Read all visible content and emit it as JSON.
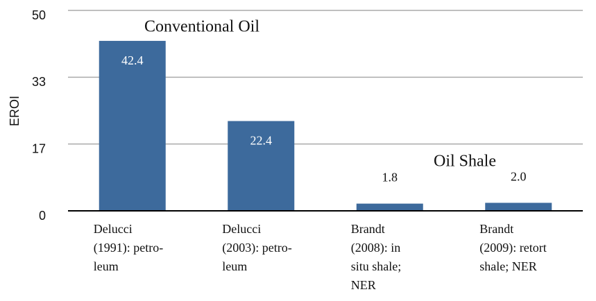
{
  "chart_data": {
    "type": "bar",
    "y_label": "EROI",
    "annotations": [
      "Conventional Oil",
      "Oil Shale"
    ],
    "categories": [
      [
        "Delucci",
        "(1991): petro-",
        "leum"
      ],
      [
        "Delucci",
        "(2003): petro-",
        "leum"
      ],
      [
        "Brandt",
        "(2008): in",
        "situ shale;",
        "NER"
      ],
      [
        "Brandt",
        "(2009): retort",
        "shale; NER"
      ]
    ],
    "values": [
      42.4,
      22.4,
      1.8,
      2.0
    ],
    "value_labels": [
      "42.4",
      "22.4",
      "1.8",
      "2.0"
    ],
    "color": "#3d6a9c",
    "ylim": [
      0,
      50
    ],
    "yticks": [
      0,
      {
        "value": 16.67,
        "label": "17"
      },
      {
        "value": 33.33,
        "label": "33"
      },
      50
    ],
    "grid": true
  }
}
